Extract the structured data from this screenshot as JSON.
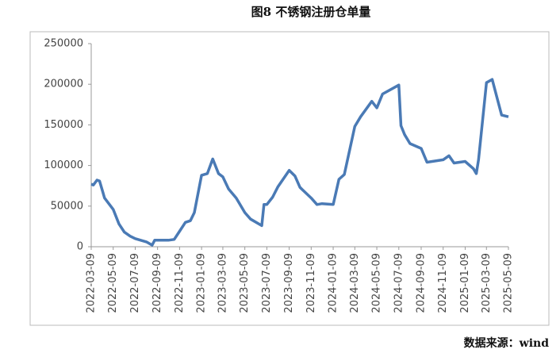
{
  "chart_data": {
    "type": "line",
    "title": "图8 不锈钢注册仓单量",
    "source": "数据来源：wind",
    "x": [
      "2022-03-09",
      "2022-03-15",
      "2022-03-25",
      "2022-04-01",
      "2022-04-09",
      "2022-04-15",
      "2022-05-09",
      "2022-05-25",
      "2022-06-09",
      "2022-06-25",
      "2022-07-09",
      "2022-08-09",
      "2022-08-25",
      "2022-09-01",
      "2022-09-09",
      "2022-10-09",
      "2022-10-25",
      "2022-11-09",
      "2022-11-25",
      "2022-12-09",
      "2022-12-20",
      "2023-01-09",
      "2023-01-25",
      "2023-02-09",
      "2023-02-25",
      "2023-03-09",
      "2023-03-25",
      "2023-04-15",
      "2023-05-09",
      "2023-05-25",
      "2023-06-25",
      "2023-07-01",
      "2023-07-09",
      "2023-07-25",
      "2023-08-09",
      "2023-09-09",
      "2023-09-25",
      "2023-10-09",
      "2023-11-09",
      "2023-11-25",
      "2023-12-09",
      "2024-01-09",
      "2024-01-25",
      "2024-02-09",
      "2024-03-09",
      "2024-03-25",
      "2024-04-25",
      "2024-05-09",
      "2024-05-25",
      "2024-07-09",
      "2024-07-15",
      "2024-07-25",
      "2024-08-09",
      "2024-09-09",
      "2024-09-25",
      "2024-11-09",
      "2024-11-25",
      "2024-12-09",
      "2025-01-09",
      "2025-02-01",
      "2025-02-09",
      "2025-02-15",
      "2025-03-09",
      "2025-03-25",
      "2025-04-20",
      "2025-05-09"
    ],
    "series": [
      {
        "name": "注册仓单量",
        "color": "#4a7ab5",
        "values": [
          77000,
          76000,
          82000,
          81000,
          69000,
          60000,
          46000,
          28000,
          18000,
          13000,
          10000,
          6000,
          2000,
          8000,
          8000,
          8000,
          9000,
          19000,
          30000,
          32000,
          42000,
          88000,
          90000,
          108000,
          90000,
          86000,
          71000,
          60000,
          42000,
          34000,
          26000,
          52000,
          52000,
          61000,
          74000,
          94000,
          87000,
          73000,
          60000,
          52000,
          53000,
          52000,
          83000,
          89000,
          148000,
          160000,
          179000,
          171000,
          188000,
          199000,
          149000,
          138000,
          127000,
          121000,
          104000,
          107000,
          112000,
          103000,
          105000,
          96000,
          90000,
          107000,
          202000,
          206000,
          162000,
          160000
        ]
      }
    ],
    "xlim": [
      "2022-03-09",
      "2025-05-09"
    ],
    "xticks": [
      "2022-03-09",
      "2022-05-09",
      "2022-07-09",
      "2022-09-09",
      "2022-11-09",
      "2023-01-09",
      "2023-03-09",
      "2023-05-09",
      "2023-07-09",
      "2023-09-09",
      "2023-11-09",
      "2024-01-09",
      "2024-03-09",
      "2024-05-09",
      "2024-07-09",
      "2024-09-09",
      "2024-11-09",
      "2025-01-09",
      "2025-03-09",
      "2025-05-09"
    ],
    "ylim": [
      0,
      250000
    ],
    "yticks": [
      0,
      50000,
      100000,
      150000,
      200000,
      250000
    ],
    "grid": false
  }
}
